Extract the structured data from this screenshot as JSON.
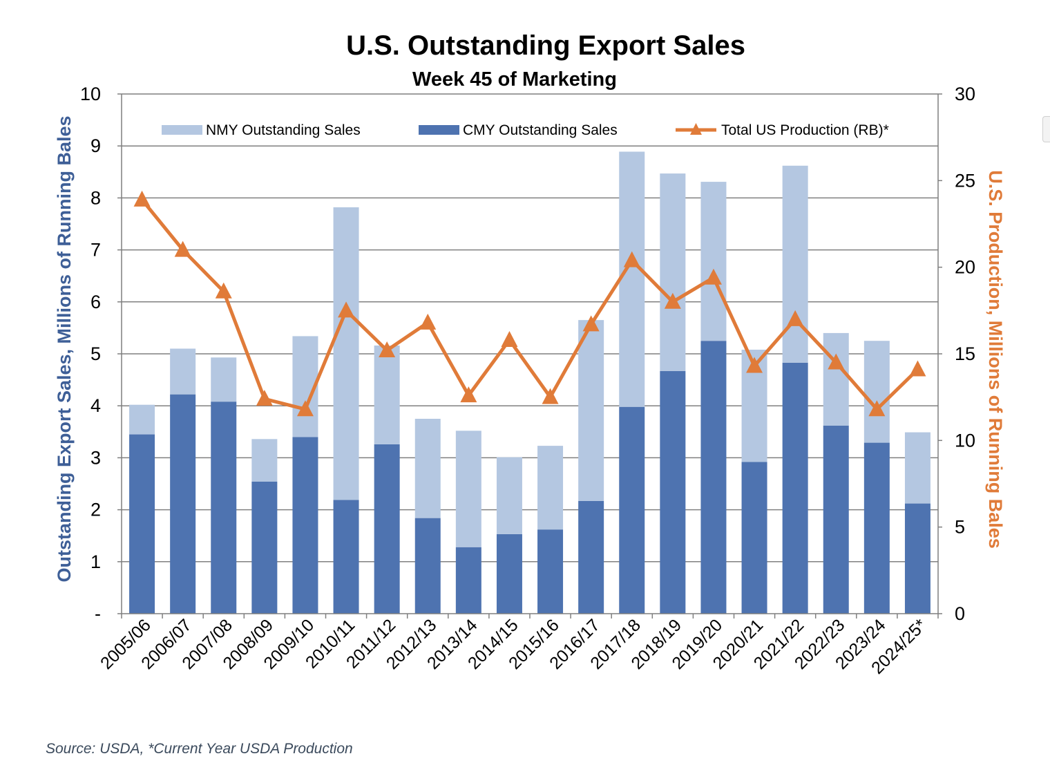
{
  "chart_data": {
    "type": "bar",
    "title": "U.S. Outstanding Export Sales",
    "subtitle": "Week 45 of Marketing",
    "ylabel": "Outstanding Export Sales, Millions of Running Bales",
    "y2label": "U.S. Production, Millions of Running Bales",
    "ylim": [
      0,
      10
    ],
    "y2lim": [
      0,
      30
    ],
    "y_ticks": [
      "-",
      "1",
      "2",
      "3",
      "4",
      "5",
      "6",
      "7",
      "8",
      "9",
      "10"
    ],
    "y2_ticks": [
      "0",
      "5",
      "10",
      "15",
      "20",
      "25",
      "30"
    ],
    "categories": [
      "2005/06",
      "2006/07",
      "2007/08",
      "2008/09",
      "2009/10",
      "2010/11",
      "2011/12",
      "2012/13",
      "2013/14",
      "2014/15",
      "2015/16",
      "2016/17",
      "2017/18",
      "2018/19",
      "2019/20",
      "2020/21",
      "2021/22",
      "2022/23",
      "2023/24",
      "2024/25*"
    ],
    "series": [
      {
        "name": "CMY Outstanding Sales",
        "kind": "bar-stacked",
        "axis": "left",
        "color": "#4e73b0",
        "values": [
          3.45,
          4.22,
          4.08,
          2.54,
          3.4,
          2.19,
          3.26,
          1.84,
          1.28,
          1.53,
          1.62,
          2.17,
          3.98,
          4.67,
          5.25,
          2.92,
          4.83,
          3.62,
          3.29,
          2.12
        ]
      },
      {
        "name": "NMY Outstanding Sales",
        "kind": "bar-stacked",
        "axis": "left",
        "color": "#b4c7e1",
        "values": [
          0.57,
          0.88,
          0.85,
          0.82,
          1.94,
          5.63,
          1.9,
          1.91,
          2.24,
          1.48,
          1.61,
          3.48,
          4.91,
          3.8,
          3.06,
          2.16,
          3.79,
          1.78,
          1.96,
          1.37
        ]
      },
      {
        "name": "Total US Production (RB)*",
        "kind": "line",
        "axis": "right",
        "color": "#e07b39",
        "values": [
          23.9,
          21.0,
          18.6,
          12.4,
          11.8,
          17.5,
          15.2,
          16.8,
          12.6,
          15.8,
          12.5,
          16.7,
          20.4,
          18.0,
          19.4,
          14.3,
          17.0,
          14.5,
          11.8,
          14.1
        ]
      }
    ],
    "legend": [
      "NMY Outstanding Sales",
      "CMY Outstanding Sales",
      "Total US Production (RB)*"
    ],
    "legend_position": "top"
  },
  "footer": {
    "source": "Source: USDA, *Current Year USDA Production"
  }
}
